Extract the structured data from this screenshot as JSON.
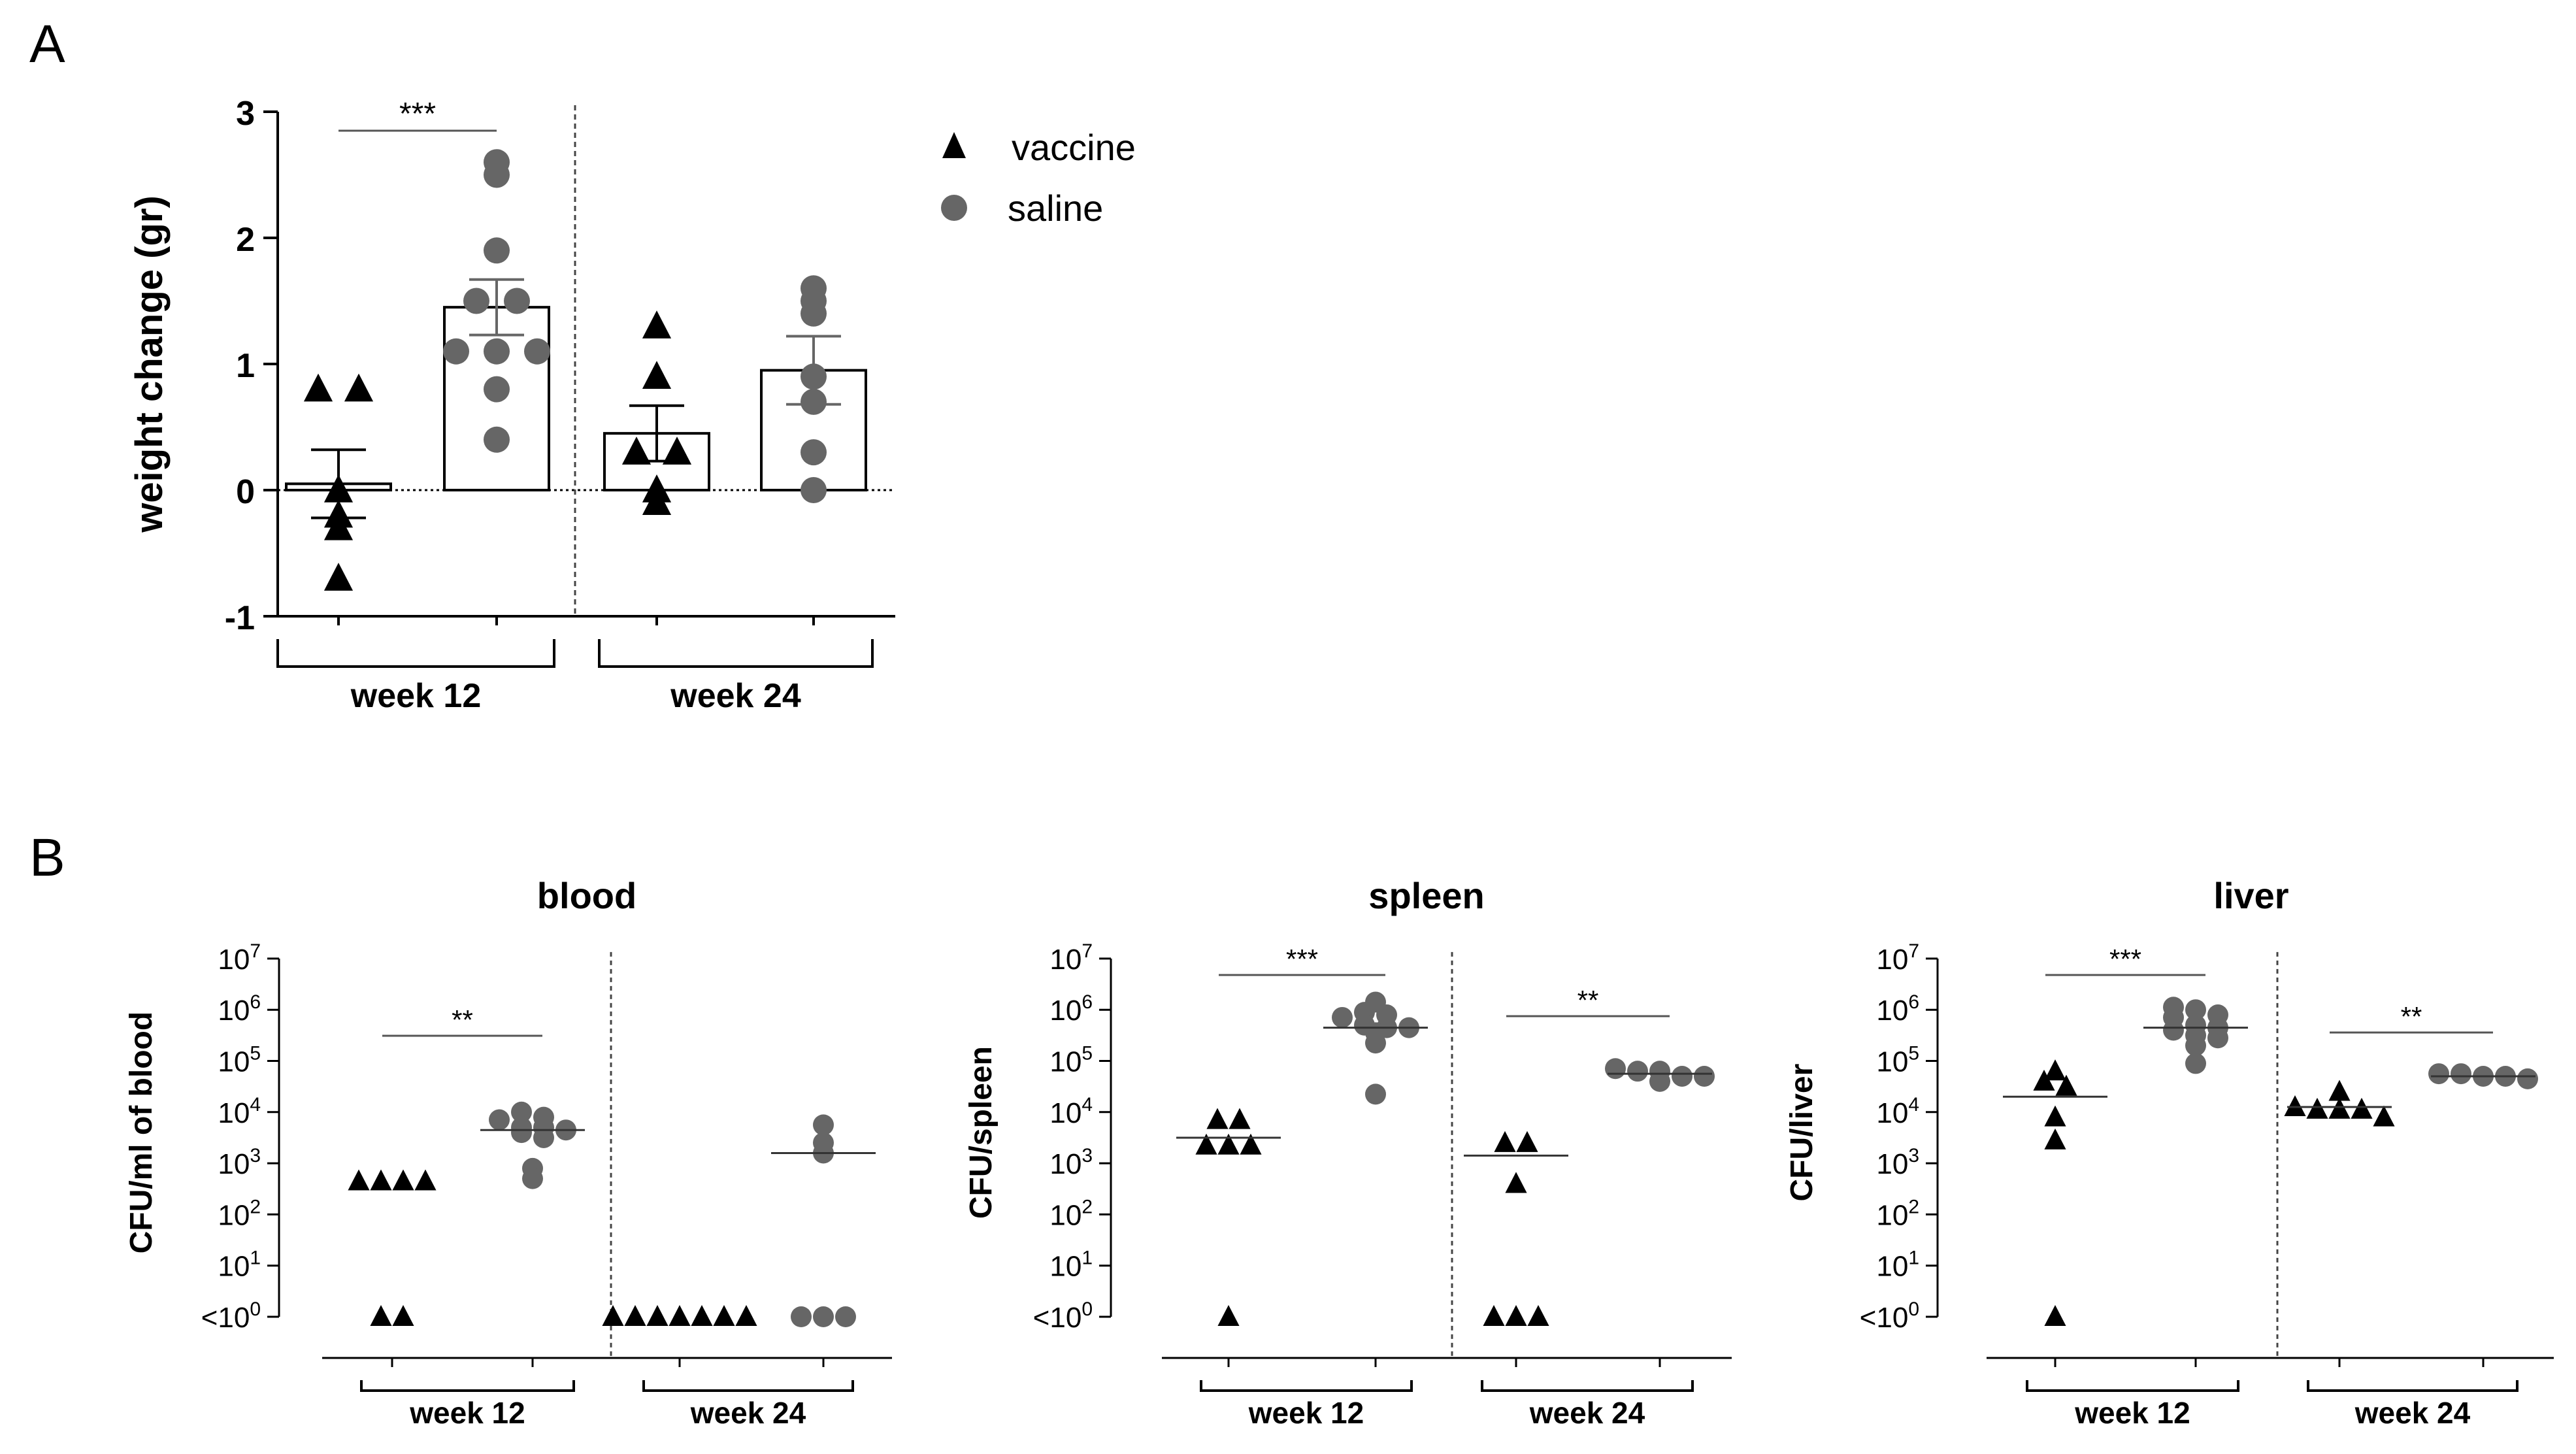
{
  "panel_labels": {
    "a": "A",
    "b": "B"
  },
  "legend": {
    "items": [
      {
        "label": "vaccine",
        "marker": "triangle",
        "color": "#000000"
      },
      {
        "label": "saline",
        "marker": "circle",
        "color": "#666666"
      }
    ]
  },
  "colors": {
    "vaccine": "#000000",
    "saline": "#666666",
    "bar_fill": "#ffffff",
    "axis": "#000000",
    "sig_line": "#555555",
    "divider": "#444444",
    "group_bracket": "#000000"
  },
  "chart_data": [
    {
      "id": "A",
      "type": "bar",
      "title": "",
      "xlabel": "",
      "ylabel": "weight change (gr)",
      "ylim": [
        -1,
        3
      ],
      "yticks": [
        -1,
        0,
        1,
        2,
        3
      ],
      "ytick_labels": [
        "-1",
        "0",
        "1",
        "2",
        "3"
      ],
      "categories": [
        "week 12",
        "week 24"
      ],
      "series": [
        {
          "name": "vaccine",
          "marker": "triangle",
          "means": [
            0.05,
            0.45
          ],
          "sem": [
            0.27,
            0.22
          ],
          "points": [
            [
              0.8,
              0.8,
              0.0,
              -0.2,
              -0.3,
              -0.7
            ],
            [
              1.3,
              0.9,
              0.3,
              0.3,
              0.0,
              -0.1
            ]
          ]
        },
        {
          "name": "saline",
          "marker": "circle",
          "means": [
            1.45,
            0.95
          ],
          "sem": [
            0.22,
            0.27
          ],
          "points": [
            [
              2.6,
              2.5,
              1.9,
              1.5,
              1.5,
              1.1,
              1.1,
              1.1,
              0.8,
              0.4
            ],
            [
              1.6,
              1.5,
              1.4,
              0.9,
              0.7,
              0.3,
              0.0
            ]
          ]
        }
      ],
      "significance": [
        {
          "category": "week 12",
          "label": "***"
        }
      ]
    },
    {
      "id": "B-blood",
      "type": "scatter",
      "title": "blood",
      "ylabel": "CFU/ml of blood",
      "yscale": "log10",
      "ylim_exponent": [
        0,
        7
      ],
      "ytick_labels": [
        "<10^0",
        "10^1",
        "10^2",
        "10^3",
        "10^4",
        "10^5",
        "10^6",
        "10^7"
      ],
      "categories": [
        "week 12",
        "week 24"
      ],
      "series": [
        {
          "name": "vaccine",
          "marker": "triangle",
          "log_values": [
            [
              2.65,
              2.65,
              2.65,
              2.65,
              0,
              0
            ],
            [
              0,
              0,
              0,
              0,
              0,
              0,
              0
            ]
          ],
          "log_median": [
            null,
            null
          ]
        },
        {
          "name": "saline",
          "marker": "circle",
          "log_values": [
            [
              4.0,
              3.9,
              3.85,
              3.7,
              3.7,
              3.65,
              3.6,
              3.5,
              2.9,
              2.7
            ],
            [
              3.75,
              3.4,
              3.2,
              0,
              0,
              0
            ]
          ],
          "log_median": [
            3.65,
            3.2
          ]
        }
      ],
      "significance": [
        {
          "category": "week 12",
          "label": "**"
        }
      ]
    },
    {
      "id": "B-spleen",
      "type": "scatter",
      "title": "spleen",
      "ylabel": "CFU/spleen",
      "yscale": "log10",
      "ylim_exponent": [
        0,
        7
      ],
      "ytick_labels": [
        "<10^0",
        "10^1",
        "10^2",
        "10^3",
        "10^4",
        "10^5",
        "10^6",
        "10^7"
      ],
      "categories": [
        "week 12",
        "week 24"
      ],
      "series": [
        {
          "name": "vaccine",
          "marker": "triangle",
          "log_values": [
            [
              3.85,
              3.85,
              3.35,
              3.35,
              3.35,
              0
            ],
            [
              3.4,
              3.4,
              2.6,
              0,
              0,
              0
            ]
          ],
          "log_median": [
            3.5,
            3.15
          ]
        },
        {
          "name": "saline",
          "marker": "circle",
          "log_values": [
            [
              6.15,
              5.95,
              5.9,
              5.85,
              5.7,
              5.65,
              5.65,
              5.55,
              5.35,
              4.35
            ],
            [
              4.85,
              4.8,
              4.8,
              4.7,
              4.7,
              4.6
            ]
          ],
          "log_median": [
            5.65,
            4.75
          ]
        }
      ],
      "significance": [
        {
          "category": "week 12",
          "label": "***"
        },
        {
          "category": "week 24",
          "label": "**"
        }
      ]
    },
    {
      "id": "B-liver",
      "type": "scatter",
      "title": "liver",
      "ylabel": "CFU/liver",
      "yscale": "log10",
      "ylim_exponent": [
        0,
        7
      ],
      "ytick_labels": [
        "<10^0",
        "10^1",
        "10^2",
        "10^3",
        "10^4",
        "10^5",
        "10^6",
        "10^7"
      ],
      "categories": [
        "week 12",
        "week 24"
      ],
      "series": [
        {
          "name": "vaccine",
          "marker": "triangle",
          "log_values": [
            [
              4.8,
              4.6,
              4.5,
              3.9,
              3.45,
              0
            ],
            [
              4.4,
              4.1,
              4.05,
              4.05,
              4.05,
              3.9
            ]
          ],
          "log_median": [
            4.3,
            4.1
          ]
        },
        {
          "name": "saline",
          "marker": "circle",
          "log_values": [
            [
              6.05,
              6.0,
              5.9,
              5.85,
              5.7,
              5.65,
              5.6,
              5.5,
              5.45,
              5.3,
              4.95
            ],
            [
              4.75,
              4.75,
              4.7,
              4.7,
              4.65
            ]
          ],
          "log_median": [
            5.65,
            4.7
          ]
        }
      ],
      "significance": [
        {
          "category": "week 12",
          "label": "***"
        },
        {
          "category": "week 24",
          "label": "**"
        }
      ]
    }
  ]
}
